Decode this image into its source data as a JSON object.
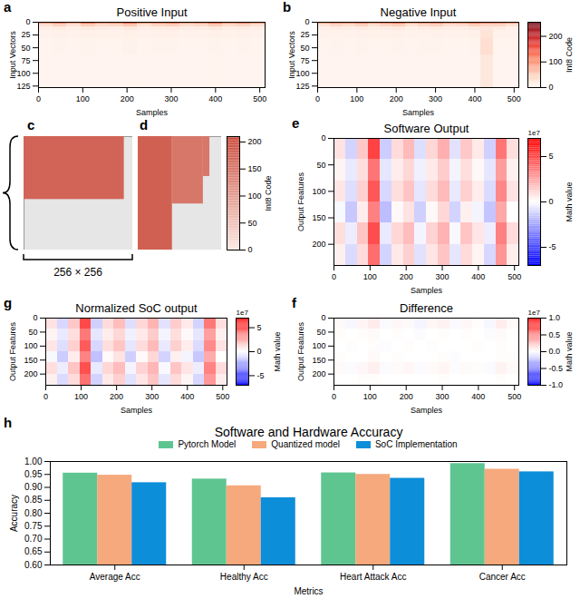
{
  "chart_data": [
    {
      "type": "heatmap",
      "panel_label": "a",
      "title": "Positive Input",
      "x_label": "Samples",
      "y_label": "Input Vectors",
      "xlim": [
        0,
        512
      ],
      "ylim": [
        128,
        0
      ],
      "xticks": [
        0,
        100,
        200,
        300,
        400,
        500
      ],
      "yticks": [
        0,
        25,
        50,
        75,
        100,
        125
      ],
      "color": "Reds",
      "color_range": [
        0,
        255
      ],
      "x_bins": [
        0,
        32,
        64,
        96,
        128,
        160,
        192,
        224,
        256,
        288,
        320,
        352,
        384,
        416,
        448,
        480,
        512
      ],
      "y_bins": [
        0,
        3,
        8,
        16,
        32,
        64,
        128
      ],
      "values": [
        [
          90,
          110,
          85,
          120,
          95,
          100,
          130,
          90,
          105,
          115,
          88,
          100,
          125,
          95,
          110,
          92
        ],
        [
          30,
          45,
          28,
          50,
          35,
          40,
          55,
          30,
          42,
          48,
          33,
          38,
          52,
          36,
          44,
          31
        ],
        [
          10,
          14,
          9,
          16,
          12,
          11,
          18,
          10,
          13,
          15,
          10,
          12,
          17,
          11,
          14,
          10
        ],
        [
          4,
          6,
          4,
          7,
          5,
          5,
          8,
          4,
          6,
          6,
          4,
          5,
          7,
          5,
          6,
          4
        ],
        [
          2,
          3,
          2,
          3,
          2,
          2,
          4,
          2,
          3,
          3,
          2,
          2,
          3,
          2,
          3,
          2
        ],
        [
          1,
          1,
          1,
          1,
          1,
          1,
          2,
          1,
          1,
          1,
          1,
          1,
          2,
          1,
          1,
          1
        ]
      ]
    },
    {
      "type": "heatmap",
      "panel_label": "b",
      "title": "Negative Input",
      "x_label": "Samples",
      "y_label": "Input Vectors",
      "xlim": [
        0,
        512
      ],
      "ylim": [
        128,
        0
      ],
      "xticks": [
        0,
        100,
        200,
        300,
        400,
        500
      ],
      "yticks": [
        0,
        25,
        50,
        75,
        100,
        125
      ],
      "color": "Reds",
      "colorbar": {
        "label": "Int8 Code",
        "range": [
          0,
          255
        ],
        "ticks": [
          0,
          100,
          200
        ]
      },
      "x_bins": [
        0,
        32,
        64,
        96,
        128,
        160,
        192,
        224,
        256,
        288,
        320,
        352,
        384,
        416,
        448,
        480,
        512
      ],
      "y_bins": [
        0,
        3,
        8,
        16,
        32,
        64,
        128
      ],
      "values": [
        [
          85,
          100,
          95,
          110,
          90,
          105,
          120,
          88,
          100,
          110,
          92,
          98,
          115,
          105,
          100,
          90
        ],
        [
          28,
          40,
          32,
          46,
          30,
          42,
          50,
          29,
          40,
          45,
          31,
          36,
          48,
          40,
          41,
          30
        ],
        [
          9,
          13,
          10,
          15,
          11,
          12,
          16,
          9,
          12,
          14,
          10,
          11,
          16,
          20,
          13,
          9
        ],
        [
          4,
          5,
          4,
          6,
          5,
          5,
          7,
          4,
          5,
          6,
          4,
          5,
          6,
          25,
          5,
          4
        ],
        [
          2,
          3,
          2,
          3,
          2,
          2,
          3,
          2,
          3,
          3,
          2,
          2,
          3,
          30,
          2,
          2
        ],
        [
          1,
          1,
          1,
          1,
          1,
          1,
          1,
          1,
          1,
          1,
          1,
          1,
          1,
          20,
          1,
          1
        ]
      ]
    },
    {
      "type": "matrix",
      "panel_label": "c",
      "xlim": [
        0,
        256
      ],
      "ylim": [
        256,
        0
      ],
      "color": "salmon",
      "color_range": [
        0,
        210
      ],
      "blocks": [
        {
          "x": [
            0,
            236
          ],
          "y": [
            0,
            142
          ],
          "value": 175
        }
      ],
      "size_label": "256 × 256"
    },
    {
      "type": "matrix",
      "panel_label": "d",
      "xlim": [
        0,
        256
      ],
      "ylim": [
        256,
        0
      ],
      "color": "salmon",
      "colorbar": {
        "label": "Int8 Code",
        "range": [
          0,
          210
        ],
        "ticks": [
          0,
          50,
          100,
          150,
          200
        ]
      },
      "blocks": [
        {
          "x": [
            0,
            105
          ],
          "y": [
            0,
            256
          ],
          "value": 180
        },
        {
          "x": [
            105,
            200
          ],
          "y": [
            0,
            152
          ],
          "value": 150
        },
        {
          "x": [
            200,
            220
          ],
          "y": [
            0,
            90
          ],
          "value": 150
        }
      ]
    },
    {
      "type": "heatmap",
      "panel_label": "e",
      "title": "Software Output",
      "x_label": "Samples",
      "y_label": "Output Features",
      "xlim": [
        0,
        512
      ],
      "ylim": [
        240,
        0
      ],
      "xticks": [
        0,
        100,
        200,
        300,
        400,
        500
      ],
      "yticks": [
        0,
        50,
        100,
        150,
        200
      ],
      "color": "bwr",
      "colorbar": {
        "label": "Math value",
        "range": [
          -7,
          7
        ],
        "ticks": [
          -5,
          0,
          5
        ],
        "offset_label": "1e7"
      },
      "x_bins": [
        0,
        32,
        64,
        96,
        128,
        160,
        192,
        224,
        256,
        288,
        320,
        352,
        384,
        416,
        448,
        480,
        512
      ],
      "y_bins": [
        0,
        40,
        80,
        120,
        160,
        200,
        240
      ],
      "values": [
        [
          0.8,
          -1.2,
          1.5,
          5.2,
          -1.4,
          1.0,
          1.9,
          -0.9,
          1.1,
          2.2,
          -0.8,
          1.5,
          0.6,
          -1.3,
          3.8,
          0.9
        ],
        [
          0.3,
          -0.6,
          0.9,
          3.8,
          -0.7,
          0.5,
          1.1,
          -0.4,
          0.6,
          1.4,
          -0.3,
          0.9,
          0.2,
          -0.7,
          2.7,
          0.4
        ],
        [
          0.7,
          -0.9,
          1.3,
          4.6,
          -1.1,
          0.9,
          1.6,
          -0.7,
          1.0,
          1.9,
          -0.6,
          1.3,
          0.5,
          -1.0,
          3.3,
          0.8
        ],
        [
          -0.2,
          -1.5,
          0.5,
          3.5,
          -1.8,
          0.2,
          0.8,
          -1.3,
          0.2,
          1.1,
          -1.2,
          0.4,
          -0.3,
          -1.6,
          2.4,
          0.0
        ],
        [
          0.9,
          -0.5,
          1.6,
          4.9,
          -0.6,
          1.1,
          1.8,
          -0.3,
          1.2,
          2.1,
          -0.2,
          1.6,
          0.7,
          -0.5,
          3.5,
          1.0
        ],
        [
          0.4,
          -1.0,
          1.0,
          4.0,
          -1.2,
          0.6,
          1.3,
          -0.8,
          0.7,
          1.6,
          -0.7,
          1.0,
          0.3,
          -1.1,
          2.9,
          0.5
        ]
      ]
    },
    {
      "type": "heatmap",
      "panel_label": "f",
      "title": "Difference",
      "x_label": "Samples",
      "y_label": "Output Features",
      "xlim": [
        0,
        512
      ],
      "ylim": [
        240,
        0
      ],
      "xticks": [
        0,
        100,
        200,
        300,
        400,
        500
      ],
      "yticks": [
        0,
        50,
        100,
        150,
        200
      ],
      "color": "bwr",
      "colorbar": {
        "label": "Math value",
        "range": [
          -1,
          1
        ],
        "ticks": [
          {
            "value": -1,
            "label": "-1.0"
          },
          -0.5,
          {
            "value": 0,
            "label": "0.0"
          },
          0.5,
          {
            "value": 1,
            "label": "1.0"
          }
        ],
        "offset_label": "1e7"
      },
      "x_bins": [
        0,
        32,
        64,
        96,
        128,
        160,
        192,
        224,
        256,
        288,
        320,
        352,
        384,
        416,
        448,
        480,
        512
      ],
      "y_bins": [
        0,
        40,
        80,
        120,
        160,
        200,
        240
      ],
      "values": [
        [
          0.02,
          -0.03,
          0.04,
          0.08,
          -0.02,
          0.03,
          0.02,
          -0.04,
          0.03,
          0.05,
          -0.02,
          0.03,
          0.01,
          -0.03,
          0.07,
          0.02
        ],
        [
          0.01,
          0.0,
          0.01,
          0.02,
          0.0,
          0.01,
          0.0,
          -0.01,
          0.0,
          0.01,
          0.0,
          0.01,
          0.0,
          -0.01,
          0.02,
          0.0
        ],
        [
          0.0,
          0.01,
          0.0,
          0.01,
          -0.01,
          0.0,
          0.01,
          0.0,
          0.01,
          0.0,
          0.0,
          0.0,
          0.01,
          0.0,
          0.01,
          0.0
        ],
        [
          0.01,
          0.0,
          0.0,
          0.02,
          0.0,
          0.01,
          0.0,
          0.0,
          0.0,
          0.01,
          -0.01,
          0.0,
          0.0,
          0.0,
          0.01,
          0.01
        ],
        [
          0.02,
          -0.02,
          0.03,
          0.06,
          -0.02,
          0.02,
          0.03,
          -0.02,
          0.02,
          0.04,
          -0.01,
          0.02,
          0.01,
          -0.02,
          0.05,
          0.02
        ],
        [
          0.0,
          0.0,
          0.01,
          0.01,
          0.0,
          0.0,
          0.0,
          0.0,
          0.0,
          0.01,
          0.0,
          0.0,
          0.0,
          0.0,
          0.01,
          0.0
        ]
      ]
    },
    {
      "type": "heatmap",
      "panel_label": "g",
      "title": "Normalized SoC output",
      "x_label": "Samples",
      "y_label": "Output Features",
      "xlim": [
        0,
        512
      ],
      "ylim": [
        240,
        0
      ],
      "xticks": [
        0,
        100,
        200,
        300,
        400,
        500
      ],
      "yticks": [
        0,
        50,
        100,
        150,
        200
      ],
      "color": "bwr",
      "colorbar": {
        "label": "Math value",
        "range": [
          -7,
          7
        ],
        "ticks": [
          -5,
          0,
          5
        ],
        "offset_label": "1e7"
      },
      "x_bins": [
        0,
        32,
        64,
        96,
        128,
        160,
        192,
        224,
        256,
        288,
        320,
        352,
        384,
        416,
        448,
        480,
        512
      ],
      "y_bins": [
        0,
        40,
        80,
        120,
        160,
        200,
        240
      ],
      "values": [
        [
          0.8,
          -1.1,
          1.5,
          5.0,
          -1.3,
          1.0,
          1.8,
          -0.9,
          1.1,
          2.1,
          -0.8,
          1.4,
          0.6,
          -1.2,
          3.7,
          0.9
        ],
        [
          0.3,
          -0.6,
          0.9,
          3.7,
          -0.7,
          0.5,
          1.1,
          -0.4,
          0.6,
          1.4,
          -0.3,
          0.9,
          0.2,
          -0.7,
          2.6,
          0.4
        ],
        [
          0.7,
          -0.9,
          1.3,
          4.5,
          -1.1,
          0.9,
          1.6,
          -0.7,
          1.0,
          1.9,
          -0.6,
          1.3,
          0.5,
          -1.0,
          3.2,
          0.8
        ],
        [
          -0.2,
          -1.4,
          0.5,
          3.4,
          -1.7,
          0.2,
          0.8,
          -1.3,
          0.2,
          1.1,
          -1.2,
          0.4,
          -0.3,
          -1.5,
          2.3,
          0.0
        ],
        [
          0.9,
          -0.5,
          1.6,
          4.8,
          -0.6,
          1.1,
          1.8,
          -0.3,
          1.2,
          2.0,
          -0.2,
          1.6,
          0.7,
          -0.5,
          3.4,
          1.0
        ],
        [
          0.4,
          -1.0,
          1.0,
          3.9,
          -1.2,
          0.6,
          1.3,
          -0.8,
          0.7,
          1.6,
          -0.7,
          1.0,
          0.3,
          -1.1,
          2.8,
          0.5
        ]
      ]
    },
    {
      "type": "bar",
      "panel_label": "h",
      "title": "Software and Hardware Accuracy",
      "x_label": "Metrics",
      "y_label": "Accuracy",
      "categories": [
        "Average Acc",
        "Healthy Acc",
        "Heart Attack Acc",
        "Cancer Acc"
      ],
      "series": [
        {
          "name": "Pytorch Model",
          "color": "#5ec591",
          "values": [
            0.955,
            0.932,
            0.956,
            0.992
          ]
        },
        {
          "name": "Quantized model",
          "color": "#f6a97c",
          "values": [
            0.947,
            0.906,
            0.95,
            0.97
          ]
        },
        {
          "name": "SoC Implementation",
          "color": "#0d8ed9",
          "values": [
            0.918,
            0.86,
            0.935,
            0.96
          ]
        }
      ],
      "ylim": [
        0.6,
        1.0
      ],
      "yticks": [
        {
          "value": 0.6,
          "label": "0.60"
        },
        {
          "value": 0.65,
          "label": "0.65"
        },
        {
          "value": 0.7,
          "label": "0.70"
        },
        {
          "value": 0.75,
          "label": "0.75"
        },
        {
          "value": 0.8,
          "label": "0.80"
        },
        {
          "value": 0.85,
          "label": "0.85"
        },
        {
          "value": 0.9,
          "label": "0.90"
        },
        {
          "value": 0.95,
          "label": "0.95"
        },
        {
          "value": 1.0,
          "label": "1.00"
        }
      ],
      "grid": false,
      "legend": "top"
    }
  ]
}
